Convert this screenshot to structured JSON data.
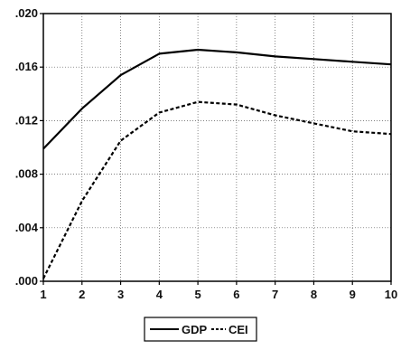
{
  "chart_data": {
    "type": "line",
    "x": [
      1,
      2,
      3,
      4,
      5,
      6,
      7,
      8,
      9,
      10
    ],
    "series": [
      {
        "name": "GDP",
        "style": "solid",
        "values": [
          0.0099,
          0.0129,
          0.0154,
          0.017,
          0.0173,
          0.0171,
          0.0168,
          0.0166,
          0.0164,
          0.0162
        ]
      },
      {
        "name": "CEI",
        "style": "dashed",
        "values": [
          0.0002,
          0.006,
          0.0105,
          0.0126,
          0.0134,
          0.0132,
          0.0124,
          0.0118,
          0.0112,
          0.011
        ]
      }
    ],
    "title": "",
    "xlabel": "",
    "ylabel": "",
    "xlim": [
      1,
      10
    ],
    "ylim": [
      0,
      0.02
    ],
    "yticks": [
      ".000",
      ".004",
      ".008",
      ".012",
      ".016",
      ".020"
    ],
    "ytick_values": [
      0,
      0.004,
      0.008,
      0.012,
      0.016,
      0.02
    ],
    "xticks": [
      "1",
      "2",
      "3",
      "4",
      "5",
      "6",
      "7",
      "8",
      "9",
      "10"
    ],
    "grid": true,
    "legend_position": "bottom-center"
  }
}
